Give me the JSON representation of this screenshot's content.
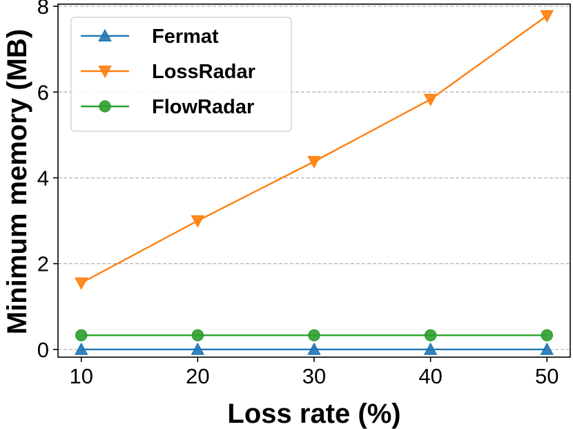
{
  "chart_data": {
    "type": "line",
    "title": "",
    "xlabel": "Loss rate (%)",
    "ylabel": "Minimum memory (MB)",
    "x": [
      10,
      20,
      30,
      40,
      50
    ],
    "xlim": [
      8,
      52
    ],
    "ylim": [
      -0.18,
      8.05
    ],
    "xticks": [
      10,
      20,
      30,
      40,
      50
    ],
    "yticks": [
      0,
      2,
      4,
      6,
      8
    ],
    "grid": "horizontal-dashed",
    "legend": "top-left",
    "series": [
      {
        "name": "Fermat",
        "marker": "triangle-up",
        "color": "#1f77b4",
        "values": [
          0.0,
          0.0,
          0.0,
          0.0,
          0.0
        ]
      },
      {
        "name": "LossRadar",
        "marker": "triangle-down",
        "color": "#ff7f0e",
        "values": [
          1.55,
          3.0,
          4.38,
          5.83,
          7.78
        ]
      },
      {
        "name": "FlowRadar",
        "marker": "circle",
        "color": "#2ca02c",
        "values": [
          0.33,
          0.33,
          0.33,
          0.33,
          0.33
        ]
      }
    ]
  }
}
